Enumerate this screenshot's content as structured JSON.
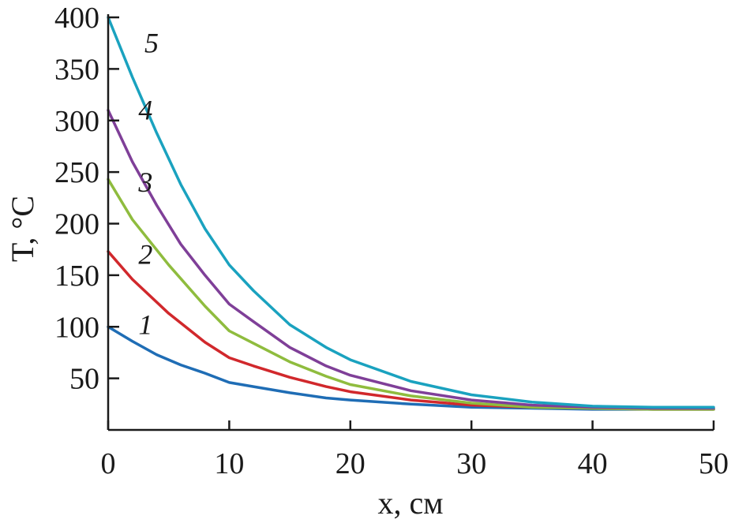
{
  "chart_data": {
    "type": "line",
    "title": "",
    "xlabel": "x, см",
    "ylabel": "T, °C",
    "xlim": [
      0,
      50
    ],
    "ylim": [
      0,
      400
    ],
    "grid": false,
    "x_ticks": [
      0,
      10,
      20,
      30,
      40,
      50
    ],
    "x_tick_labels": [
      "0",
      "10",
      "20",
      "30",
      "40",
      "50"
    ],
    "y_ticks": [
      50,
      100,
      150,
      200,
      250,
      300,
      350,
      400
    ],
    "y_tick_labels": [
      "50",
      "100",
      "150",
      "200",
      "250",
      "300",
      "350",
      "400"
    ],
    "series": [
      {
        "name": "1",
        "color": "#1f6db5",
        "x": [
          0,
          2,
          4,
          6,
          8,
          10,
          12,
          15,
          18,
          20,
          25,
          30,
          35,
          40,
          45,
          50
        ],
        "values": [
          100,
          86,
          73,
          63,
          55,
          46,
          42,
          36,
          31,
          29,
          25,
          22,
          21,
          20,
          20,
          20
        ]
      },
      {
        "name": "2",
        "color": "#d1282c",
        "x": [
          0,
          2,
          5,
          8,
          10,
          12,
          15,
          18,
          20,
          25,
          30,
          35,
          40,
          45,
          50
        ],
        "values": [
          173,
          146,
          113,
          85,
          70,
          62,
          51,
          42,
          37,
          29,
          24,
          22,
          21,
          20,
          20
        ]
      },
      {
        "name": "3",
        "color": "#8fbc3e",
        "x": [
          0,
          2,
          5,
          8,
          10,
          12,
          15,
          18,
          20,
          25,
          30,
          35,
          40,
          45,
          50
        ],
        "values": [
          243,
          204,
          160,
          120,
          96,
          84,
          66,
          52,
          44,
          33,
          26,
          22,
          21,
          20,
          20
        ]
      },
      {
        "name": "4",
        "color": "#7f3f98",
        "x": [
          0,
          2,
          4,
          6,
          8,
          10,
          12,
          15,
          18,
          20,
          25,
          30,
          35,
          40,
          45,
          50
        ],
        "values": [
          310,
          260,
          218,
          180,
          150,
          122,
          105,
          80,
          62,
          53,
          38,
          29,
          24,
          22,
          21,
          21
        ]
      },
      {
        "name": "5",
        "color": "#1aa2bf",
        "x": [
          0,
          2,
          4,
          6,
          8,
          10,
          12,
          15,
          18,
          20,
          25,
          30,
          35,
          40,
          45,
          50
        ],
        "values": [
          400,
          342,
          288,
          238,
          195,
          160,
          135,
          102,
          80,
          68,
          47,
          34,
          27,
          23,
          22,
          22
        ]
      }
    ],
    "annotations": [
      {
        "text": "1",
        "x": 2.5,
        "y": 102
      },
      {
        "text": "2",
        "x": 2.5,
        "y": 170
      },
      {
        "text": "3",
        "x": 2.5,
        "y": 240
      },
      {
        "text": "4",
        "x": 2.5,
        "y": 310
      },
      {
        "text": "5",
        "x": 3.0,
        "y": 375
      }
    ]
  }
}
